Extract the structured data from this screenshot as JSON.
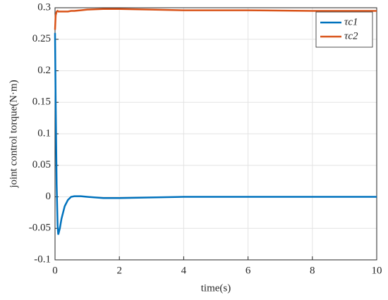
{
  "chart_data": {
    "type": "line",
    "xlabel": "time(s)",
    "ylabel": "joint control torque(N·m)",
    "x": [
      0,
      0.02,
      0.05,
      0.08,
      0.1,
      0.15,
      0.2,
      0.3,
      0.4,
      0.5,
      0.6,
      0.8,
      1,
      1.5,
      2,
      3,
      4,
      6,
      8,
      10
    ],
    "series": [
      {
        "name": "τc1",
        "color": "#0072BD",
        "values": [
          0.26,
          0.15,
          0.02,
          -0.045,
          -0.06,
          -0.05,
          -0.035,
          -0.015,
          -0.005,
          0,
          0.001,
          0.001,
          0,
          -0.002,
          -0.002,
          -0.001,
          0,
          0,
          0,
          0
        ]
      },
      {
        "name": "τc2",
        "color": "#D95319",
        "values": [
          0.265,
          0.288,
          0.294,
          0.295,
          0.294,
          0.294,
          0.294,
          0.294,
          0.294,
          0.295,
          0.295,
          0.296,
          0.297,
          0.298,
          0.298,
          0.297,
          0.296,
          0.296,
          0.295,
          0.295
        ]
      }
    ],
    "xlim": [
      0,
      10
    ],
    "xticks": [
      0,
      2,
      4,
      6,
      8,
      10
    ],
    "ylim": [
      -0.1,
      0.3
    ],
    "yticks": [
      -0.1,
      -0.05,
      0,
      0.05,
      0.1,
      0.15,
      0.2,
      0.25,
      0.3
    ],
    "grid": true,
    "legend": "top-right"
  }
}
